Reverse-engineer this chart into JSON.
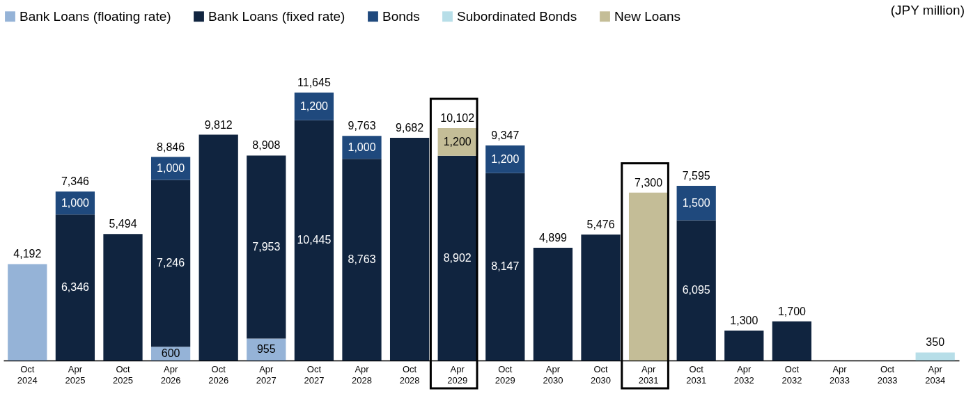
{
  "chart_data": {
    "type": "bar",
    "stacked": true,
    "legend": "top",
    "categories": [
      "Oct 2024",
      "Apr 2025",
      "Oct 2025",
      "Apr 2026",
      "Oct 2026",
      "Apr 2027",
      "Oct 2027",
      "Apr 2028",
      "Oct 2028",
      "Apr 2029",
      "Oct 2029",
      "Apr 2030",
      "Oct 2030",
      "Apr 2031",
      "Oct 2031",
      "Apr 2032",
      "Oct 2032",
      "Apr 2033",
      "Oct 2033",
      "Apr 2034"
    ],
    "series": [
      {
        "name": "Bank Loans (floating rate)",
        "color": "#95b3d7",
        "values": [
          4192,
          null,
          null,
          600,
          null,
          955,
          null,
          null,
          null,
          null,
          null,
          null,
          null,
          null,
          null,
          null,
          null,
          null,
          null,
          null
        ],
        "value_labels": [
          null,
          null,
          null,
          "600",
          null,
          "955",
          null,
          null,
          null,
          null,
          null,
          null,
          null,
          null,
          null,
          null,
          null,
          null,
          null,
          null
        ]
      },
      {
        "name": "Bank Loans (fixed rate)",
        "color": "#10243f",
        "values": [
          null,
          6346,
          5494,
          7246,
          9812,
          7953,
          10445,
          8763,
          9682,
          8902,
          8147,
          4899,
          5476,
          null,
          6095,
          1300,
          1700,
          null,
          null,
          null
        ],
        "value_labels": [
          null,
          "6,346",
          null,
          "7,246",
          null,
          "7,953",
          "10,445",
          "8,763",
          null,
          "8,902",
          "8,147",
          null,
          null,
          null,
          "6,095",
          null,
          null,
          null,
          null,
          null
        ]
      },
      {
        "name": "Bonds",
        "color": "#1f497d",
        "values": [
          null,
          1000,
          null,
          1000,
          null,
          null,
          1200,
          1000,
          null,
          null,
          1200,
          null,
          null,
          null,
          1500,
          null,
          null,
          null,
          null,
          null
        ],
        "value_labels": [
          null,
          "1,000",
          null,
          "1,000",
          null,
          null,
          "1,200",
          "1,000",
          null,
          null,
          "1,200",
          null,
          null,
          null,
          "1,500",
          null,
          null,
          null,
          null,
          null
        ]
      },
      {
        "name": "Subordinated Bonds",
        "color": "#b7dee8",
        "values": [
          null,
          null,
          null,
          null,
          null,
          null,
          null,
          null,
          null,
          null,
          null,
          null,
          null,
          null,
          null,
          null,
          null,
          null,
          null,
          350
        ],
        "value_labels": [
          null,
          null,
          null,
          null,
          null,
          null,
          null,
          null,
          null,
          null,
          null,
          null,
          null,
          null,
          null,
          null,
          null,
          null,
          null,
          null
        ]
      },
      {
        "name": "New Loans",
        "color": "#c4bd97",
        "values": [
          null,
          null,
          null,
          null,
          null,
          null,
          null,
          null,
          null,
          1200,
          null,
          null,
          null,
          7300,
          null,
          null,
          null,
          null,
          null,
          null
        ],
        "value_labels": [
          null,
          null,
          null,
          null,
          null,
          null,
          null,
          null,
          null,
          "1,200",
          null,
          null,
          null,
          null,
          null,
          null,
          null,
          null,
          null,
          null
        ]
      }
    ],
    "totals": [
      "4,192",
      "7,346",
      "5,494",
      "8,846",
      "9,812",
      "8,908",
      "11,645",
      "9,763",
      "9,682",
      "10,102",
      "9,347",
      "4,899",
      "5,476",
      "7,300",
      "7,595",
      "1,300",
      "1,700",
      null,
      null,
      "350"
    ],
    "annotations": [
      "(JPY million)"
    ]
  }
}
